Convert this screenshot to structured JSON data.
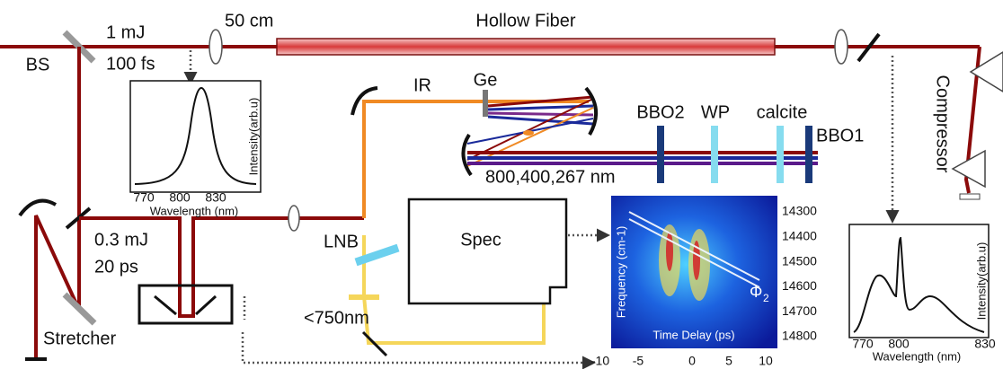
{
  "labels": {
    "bs": "BS",
    "energy1": "1 mJ",
    "duration1": "100 fs",
    "focal": "50 cm",
    "hollow_fiber": "Hollow Fiber",
    "compressor": "Compressor",
    "ir": "IR",
    "ge": "Ge",
    "bbo2": "BBO2",
    "wp": "WP",
    "calcite": "calcite",
    "bbo1": "BBO1",
    "wavelengths": "800,400,267 nm",
    "energy2": "0.3 mJ",
    "duration2": "20 ps",
    "lnb": "LNB",
    "filter": "<750nm",
    "spec": "Spec",
    "stretcher": "Stretcher"
  },
  "inset_left": {
    "y_label": "Intensity(arb.u)",
    "x_label": "Wavelength (nm)",
    "x_ticks": [
      770,
      800,
      830
    ]
  },
  "inset_right": {
    "y_label": "Intensity(arb.u)",
    "x_label": "Wavelength (nm)",
    "x_ticks": [
      770,
      800,
      830
    ]
  },
  "spectrogram": {
    "y_label": "Frequency (cm-1)",
    "x_label": "Time Delay (ps)",
    "phase_symbol": "Φ",
    "phase_subscript": "2",
    "y_ticks": [
      14300,
      14400,
      14500,
      14600,
      14700,
      14800
    ],
    "x_ticks": [
      -10,
      -5,
      0,
      5,
      10
    ]
  }
}
